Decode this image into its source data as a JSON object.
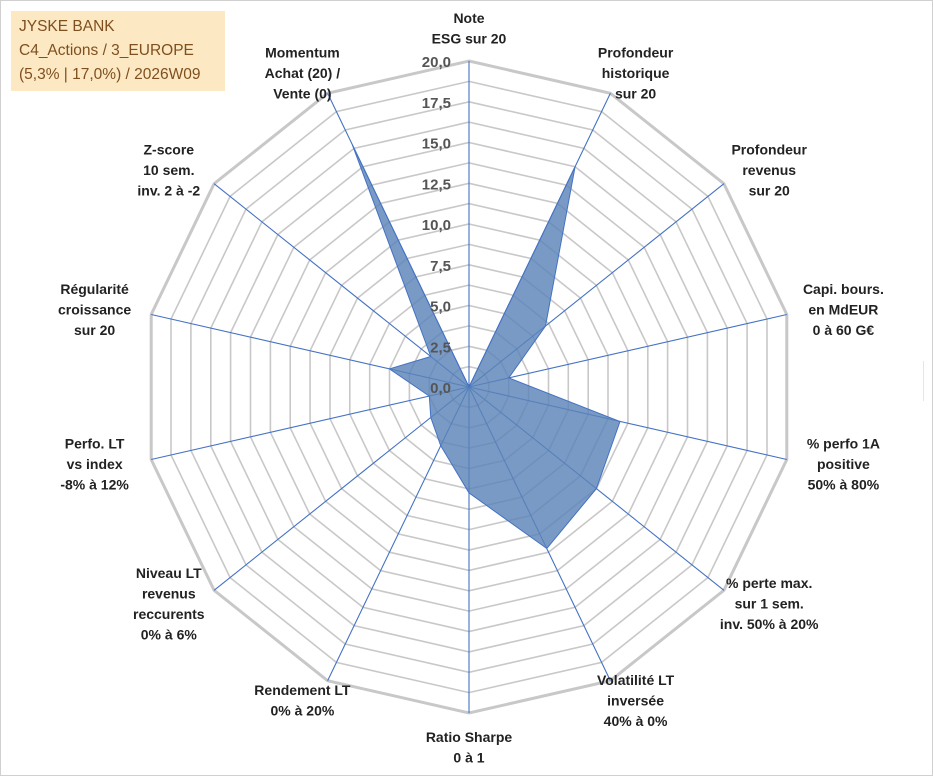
{
  "info": {
    "line1": "JYSKE BANK",
    "line2": "C4_Actions / 3_EUROPE",
    "line3": "(5,3% | 17,0%) / 2026W09"
  },
  "colors": {
    "fill": "#5b84b8",
    "stroke": "#4472c4",
    "grid": "#c8c8c8",
    "spoke": "#4472c4",
    "info_bg": "#fce9c4",
    "info_text": "#7f4f1e"
  },
  "chart_data": {
    "type": "radar",
    "r_max": 20,
    "r_ticks": [
      "0,0",
      "2,5",
      "5,0",
      "7,5",
      "10,0",
      "12,5",
      "15,0",
      "17,5",
      "20,0"
    ],
    "r_tick_values": [
      0,
      2.5,
      5,
      7.5,
      10,
      12.5,
      15,
      17.5,
      20
    ],
    "axes": [
      {
        "label": [
          "Note",
          "ESG sur 20"
        ],
        "value": 0
      },
      {
        "label": [
          "Profondeur",
          "historique",
          "sur 20"
        ],
        "value": 15
      },
      {
        "label": [
          "Profondeur",
          "revenus",
          "sur 20"
        ],
        "value": 6
      },
      {
        "label": [
          "Capi. bours.",
          "en MdEUR",
          "0 à 60 G€"
        ],
        "value": 2.5
      },
      {
        "label": [
          "% perfo 1A",
          "positive",
          "50% à 80%"
        ],
        "value": 9.5
      },
      {
        "label": [
          "% perte max.",
          "sur 1 sem.",
          "inv. 50% à 20%"
        ],
        "value": 10
      },
      {
        "label": [
          "Volatilité LT",
          "inversée",
          "40% à 0%"
        ],
        "value": 11
      },
      {
        "label": [
          "Ratio Sharpe",
          "0 à 1"
        ],
        "value": 6.5
      },
      {
        "label": [
          "Rendement LT",
          "0% à 20%"
        ],
        "value": 4
      },
      {
        "label": [
          "Niveau LT",
          "revenus",
          "reccurents",
          "0% à 6%"
        ],
        "value": 3
      },
      {
        "label": [
          "Perfo. LT",
          "vs index",
          "-8% à 12%"
        ],
        "value": 2.5
      },
      {
        "label": [
          "Régularité",
          "croissance",
          "sur 20"
        ],
        "value": 5
      },
      {
        "label": [
          "Z-score",
          "10 sem.",
          "inv. 2 à -2"
        ],
        "value": 3
      },
      {
        "label": [
          "Momentum",
          "Achat (20) /",
          "Vente (0)"
        ],
        "value": 16.5
      }
    ]
  }
}
